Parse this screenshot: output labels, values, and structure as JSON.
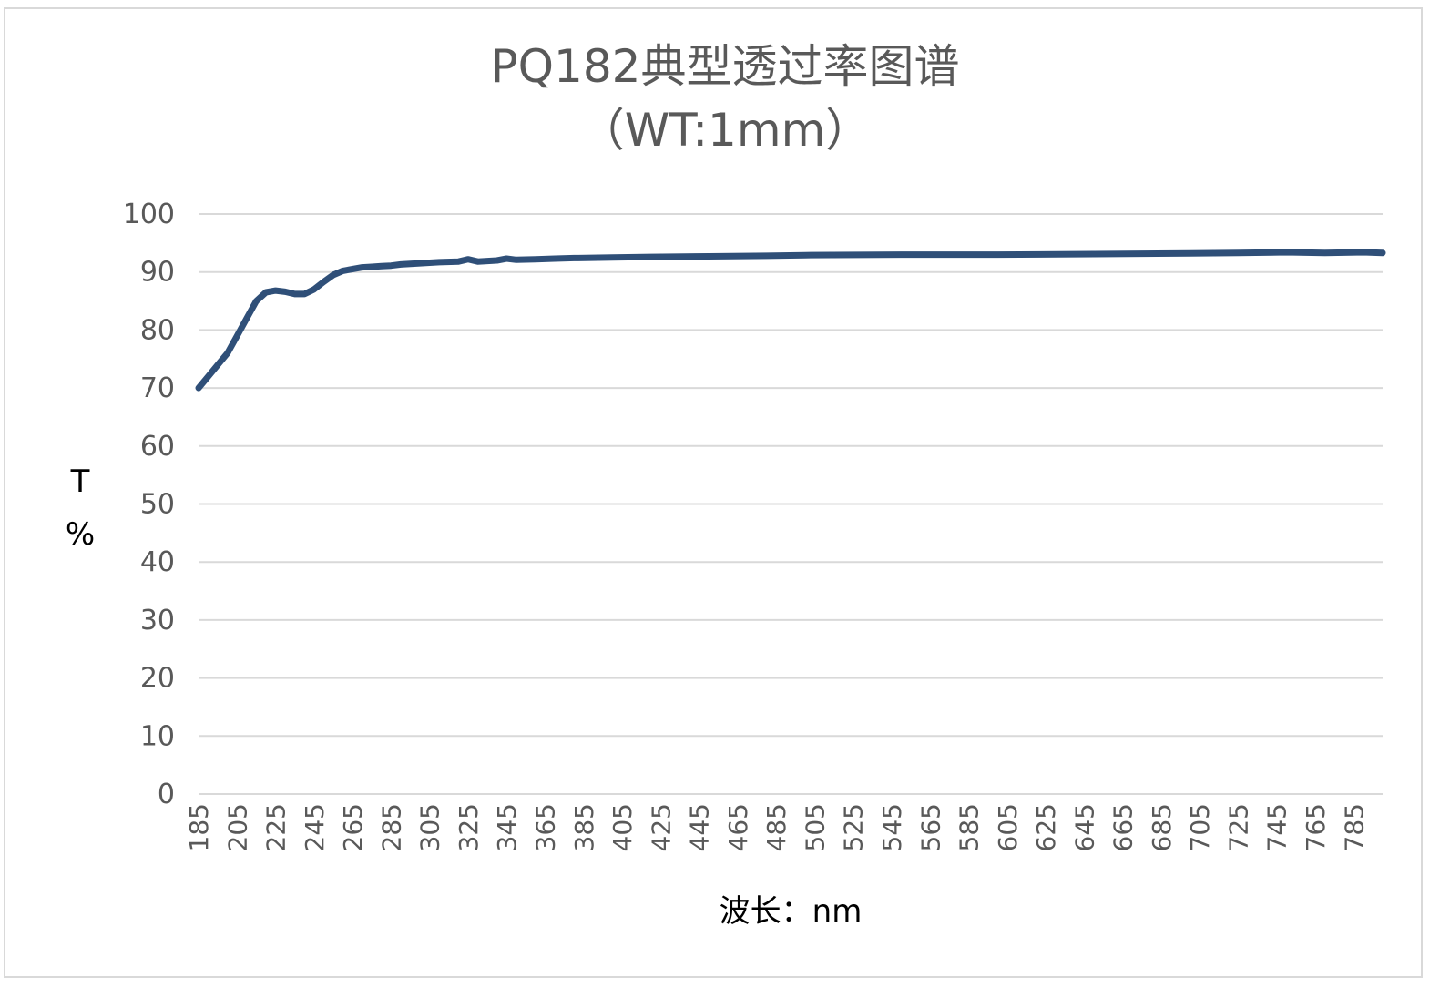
{
  "chart_data": {
    "type": "line",
    "title_line1": "PQ182典型透过率图谱",
    "title_line2": "（WT:1mm）",
    "xlabel": "波长：nm",
    "ylabel_line1": "T",
    "ylabel_line2": "%",
    "xlim": [
      185,
      800
    ],
    "ylim": [
      0,
      100
    ],
    "y_ticks": [
      "0",
      "10",
      "20",
      "30",
      "40",
      "50",
      "60",
      "70",
      "80",
      "90",
      "100"
    ],
    "x_ticks": [
      "185",
      "205",
      "225",
      "245",
      "265",
      "285",
      "305",
      "325",
      "345",
      "365",
      "385",
      "405",
      "425",
      "445",
      "465",
      "485",
      "505",
      "525",
      "545",
      "565",
      "585",
      "605",
      "625",
      "645",
      "665",
      "685",
      "705",
      "725",
      "745",
      "765",
      "785"
    ],
    "grid": "horizontal",
    "legend": "none",
    "colors": {
      "line": "#2f4f78",
      "grid": "#d9d9d9",
      "text": "#595959"
    },
    "series": [
      {
        "x": [
          185,
          190,
          195,
          200,
          205,
          210,
          215,
          220,
          225,
          230,
          235,
          240,
          245,
          250,
          255,
          260,
          265,
          270,
          275,
          280,
          285,
          290,
          295,
          300,
          310,
          320,
          325,
          330,
          340,
          345,
          350,
          360,
          370,
          380,
          400,
          420,
          450,
          480,
          500,
          550,
          600,
          650,
          700,
          725,
          750,
          770,
          790,
          800
        ],
        "y": [
          70,
          72,
          74,
          76,
          79,
          82,
          85,
          86.5,
          86.8,
          86.6,
          86.2,
          86.2,
          87,
          88.3,
          89.5,
          90.2,
          90.5,
          90.8,
          90.9,
          91,
          91.1,
          91.3,
          91.4,
          91.5,
          91.7,
          91.8,
          92.2,
          91.8,
          92,
          92.3,
          92.1,
          92.2,
          92.3,
          92.4,
          92.5,
          92.6,
          92.7,
          92.8,
          92.9,
          93,
          93,
          93.1,
          93.2,
          93.3,
          93.4,
          93.3,
          93.4,
          93.3
        ]
      }
    ]
  }
}
